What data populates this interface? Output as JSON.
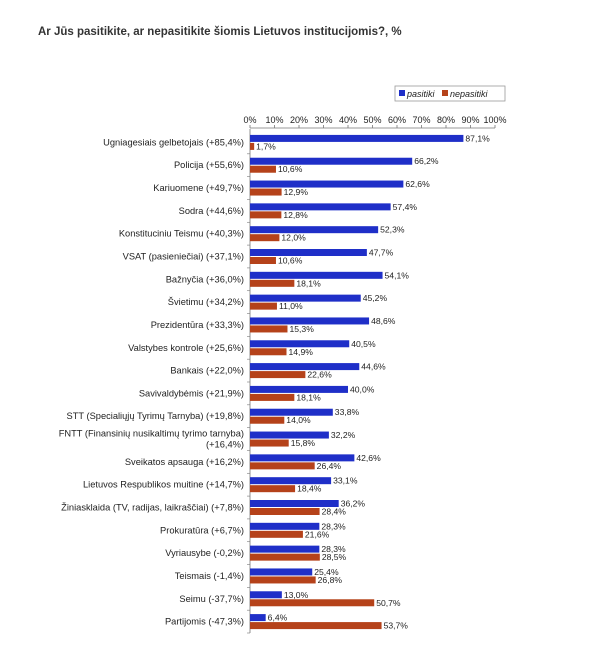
{
  "chart_data": {
    "type": "bar",
    "title": "Ar Jūs pasitikite, ar nepasitikite šiomis Lietuvos institucijomis?, %",
    "orientation": "horizontal",
    "xlim": [
      0,
      100
    ],
    "x_ticks": [
      "0%",
      "10%",
      "20%",
      "30%",
      "40%",
      "50%",
      "60%",
      "70%",
      "80%",
      "90%",
      "100%"
    ],
    "legend_position": "top-right",
    "categories": [
      [
        "Ugniagesiais gelbetojais (+85,4%)"
      ],
      [
        "Policija (+55,6%)"
      ],
      [
        "Kariuomene (+49,7%)"
      ],
      [
        "Sodra (+44,6%)"
      ],
      [
        "Konstituciniu Teismu (+40,3%)"
      ],
      [
        "VSAT (pasieniečiai) (+37,1%)"
      ],
      [
        "Bažnyčia (+36,0%)"
      ],
      [
        "Švietimu (+34,2%)"
      ],
      [
        "Prezidentūra (+33,3%)"
      ],
      [
        "Valstybes kontrole (+25,6%)"
      ],
      [
        "Bankais (+22,0%)"
      ],
      [
        "Savivaldybėmis (+21,9%)"
      ],
      [
        "STT (Specialiųjų Tyrimų Tarnyba) (+19,8%)"
      ],
      [
        "FNTT (Finansinių nusikaltimų tyrimo tarnyba)",
        "(+16,4%)"
      ],
      [
        "Sveikatos apsauga (+16,2%)"
      ],
      [
        "Lietuvos Respublikos muitine (+14,7%)"
      ],
      [
        "Žiniasklaida (TV, radijas, laikraščiai) (+7,8%)"
      ],
      [
        "Prokuratūra (+6,7%)"
      ],
      [
        "Vyriausybe (-0,2%)"
      ],
      [
        "Teismais (-1,4%)"
      ],
      [
        "Seimu (-37,7%)"
      ],
      [
        "Partijomis (-47,3%)"
      ]
    ],
    "series": [
      {
        "name": "pasitiki",
        "color": "#1f2fc8",
        "values": [
          87.1,
          66.2,
          62.6,
          57.4,
          52.3,
          47.7,
          54.1,
          45.2,
          48.6,
          40.5,
          44.6,
          40.0,
          33.8,
          32.2,
          42.6,
          33.1,
          36.2,
          28.3,
          28.3,
          25.4,
          13.0,
          6.4
        ],
        "labels": [
          "87,1%",
          "66,2%",
          "62,6%",
          "57,4%",
          "52,3%",
          "47,7%",
          "54,1%",
          "45,2%",
          "48,6%",
          "40,5%",
          "44,6%",
          "40,0%",
          "33,8%",
          "32,2%",
          "42,6%",
          "33,1%",
          "36,2%",
          "28,3%",
          "28,3%",
          "25,4%",
          "13,0%",
          "6,4%"
        ]
      },
      {
        "name": "nepasitiki",
        "color": "#b5421a",
        "values": [
          1.7,
          10.6,
          12.9,
          12.8,
          12.0,
          10.6,
          18.1,
          11.0,
          15.3,
          14.9,
          22.6,
          18.1,
          14.0,
          15.8,
          26.4,
          18.4,
          28.4,
          21.6,
          28.5,
          26.8,
          50.7,
          53.7
        ],
        "labels": [
          "1,7%",
          "10,6%",
          "12,9%",
          "12,8%",
          "12,0%",
          "10,6%",
          "18,1%",
          "11,0%",
          "15,3%",
          "14,9%",
          "22,6%",
          "18,1%",
          "14,0%",
          "15,8%",
          "26,4%",
          "18,4%",
          "28,4%",
          "21,6%",
          "28,5%",
          "26,8%",
          "50,7%",
          "53,7%"
        ]
      }
    ]
  }
}
